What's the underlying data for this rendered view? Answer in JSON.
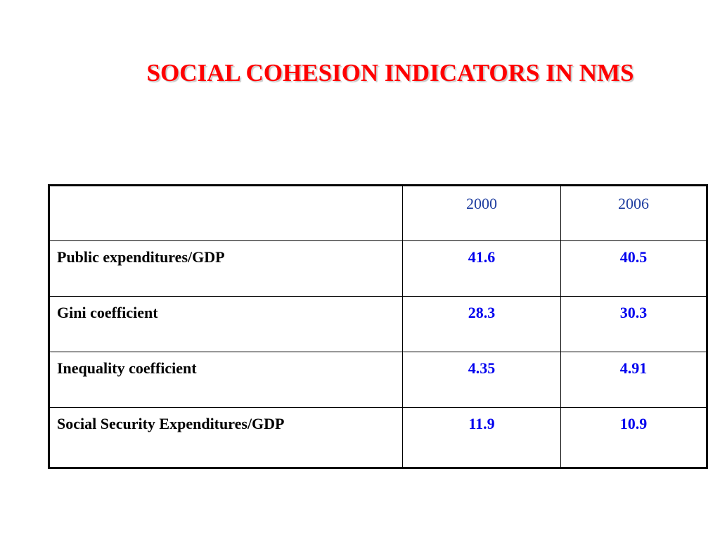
{
  "title": "SOCIAL COHESION INDICATORS IN NMS",
  "table": {
    "headers": [
      "",
      "2000",
      "2006"
    ],
    "rows": [
      {
        "label": "Public expenditures/GDP",
        "y2000": "41.6",
        "y2006": "40.5"
      },
      {
        "label": "Gini coefficient",
        "y2000": "28.3",
        "y2006": "30.3"
      },
      {
        "label": "Inequality coefficient",
        "y2000": "4.35",
        "y2006": "4.91"
      },
      {
        "label": "Social Security Expenditures/GDP",
        "y2000": "11.9",
        "y2006": "10.9"
      }
    ]
  },
  "colors": {
    "title": "#ff0000",
    "header_text": "#1f3ea0",
    "value_text": "#0000ee",
    "label_text": "#000000"
  }
}
